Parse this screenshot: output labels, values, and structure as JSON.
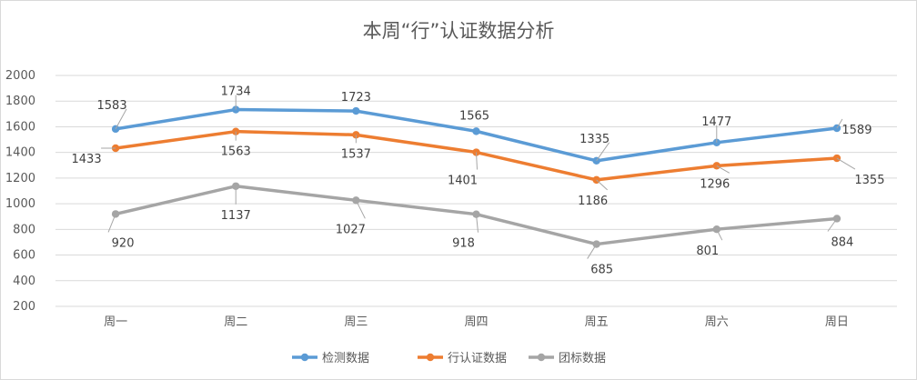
{
  "chart_data": {
    "type": "line",
    "title": "本周“行”认证数据分析",
    "categories": [
      "周一",
      "周二",
      "周三",
      "周四",
      "周五",
      "周六",
      "周日"
    ],
    "ylim": [
      200,
      2000
    ],
    "yticks": [
      "2000",
      "1800",
      "1600",
      "1400",
      "1200",
      "1000",
      "800",
      "600",
      "400",
      "200"
    ],
    "grid": true,
    "legend_position": "bottom",
    "series": [
      {
        "name": "检测数据",
        "color": "#5b9bd5",
        "values": [
          1583,
          1734,
          1723,
          1565,
          1335,
          1477,
          1589
        ]
      },
      {
        "name": "行认证数据",
        "color": "#ed7d31",
        "values": [
          1433,
          1563,
          1537,
          1401,
          1186,
          1296,
          1355
        ]
      },
      {
        "name": "团标数据",
        "color": "#a5a5a5",
        "values": [
          920,
          1137,
          1027,
          918,
          685,
          801,
          884
        ]
      }
    ]
  }
}
